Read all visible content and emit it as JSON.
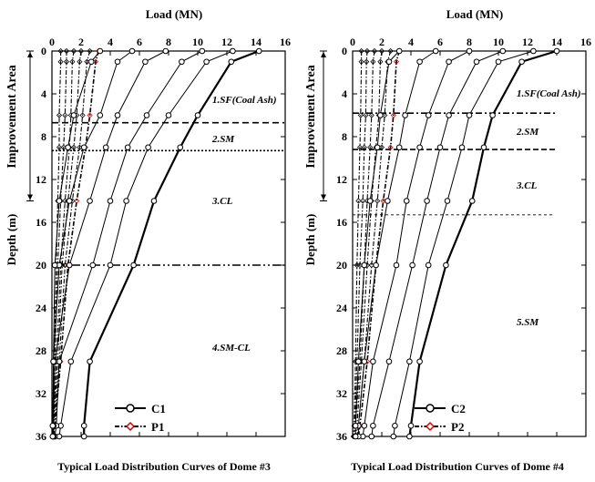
{
  "chart_data": [
    {
      "type": "line",
      "caption": "Typical Load Distribution Curves of Dome #3",
      "xlabel": "Load (MN)",
      "ylabel": "Depth (m)",
      "side_label": "Improvement Area",
      "xlim": [
        0,
        16
      ],
      "ylim": [
        0,
        36
      ],
      "x_ticks": [
        "0",
        "2",
        "4",
        "6",
        "8",
        "10",
        "12",
        "14",
        "16"
      ],
      "y_ticks": [
        "0",
        "4",
        "8",
        "12",
        "16",
        "20",
        "24",
        "28",
        "32",
        "36"
      ],
      "layers": [
        "1.SF(Coal Ash)",
        "2.SM",
        "3.CL",
        "4.SM-CL"
      ],
      "boundaries": [
        6.7,
        9.3,
        20.0
      ],
      "legend": [
        "C1",
        "P1"
      ],
      "depths": [
        0,
        1,
        6,
        9,
        14,
        20,
        29,
        35,
        36
      ],
      "series": [
        {
          "name": "C1",
          "x": [
            14.2,
            12.3,
            10.0,
            8.8,
            7.0,
            5.6,
            2.6,
            2.2,
            2.2
          ]
        },
        {
          "x": [
            12.4,
            10.6,
            8.0,
            6.6,
            5.1,
            4.0,
            1.3,
            0.6,
            0.5
          ]
        },
        {
          "x": [
            10.3,
            8.9,
            6.5,
            5.2,
            4.0,
            2.8,
            0.5,
            0.3,
            0.2
          ]
        },
        {
          "x": [
            7.8,
            6.4,
            4.5,
            3.7,
            2.6,
            1.2,
            0.2,
            0.1,
            0.1
          ]
        },
        {
          "x": [
            5.5,
            4.5,
            3.3,
            2.2,
            1.2,
            0.5,
            0.1,
            0.1,
            0.1
          ]
        },
        {
          "x": [
            3.3,
            2.7,
            1.5,
            1.1,
            0.5,
            0.2,
            0.1,
            0.05,
            0.05
          ]
        }
      ],
      "p_series": [
        {
          "name": "P1",
          "x": [
            3.2,
            3.0,
            2.6,
            2.3,
            1.7,
            1.1,
            0.6,
            0.2,
            0.1
          ]
        },
        {
          "x": [
            2.6,
            2.4,
            2.1,
            1.9,
            1.4,
            0.9,
            0.5,
            0.15,
            0.1
          ]
        },
        {
          "x": [
            2.0,
            1.9,
            1.7,
            1.5,
            1.1,
            0.7,
            0.4,
            0.1,
            0.05
          ]
        },
        {
          "x": [
            1.5,
            1.4,
            1.3,
            1.2,
            0.9,
            0.6,
            0.3,
            0.1,
            0.05
          ]
        },
        {
          "x": [
            1.0,
            1.0,
            0.9,
            0.8,
            0.6,
            0.4,
            0.2,
            0.05,
            0.05
          ]
        },
        {
          "x": [
            0.6,
            0.6,
            0.5,
            0.5,
            0.4,
            0.3,
            0.15,
            0.05,
            0.05
          ]
        }
      ]
    },
    {
      "type": "line",
      "caption": "Typical Load Distribution Curves of Dome #4",
      "xlabel": "Load (MN)",
      "ylabel": "Depth (m)",
      "side_label": "Improvement Area",
      "xlim": [
        0,
        16
      ],
      "ylim": [
        0,
        36
      ],
      "x_ticks": [
        "0",
        "2",
        "4",
        "6",
        "8",
        "10",
        "12",
        "14",
        "16"
      ],
      "y_ticks": [
        "0",
        "4",
        "8",
        "12",
        "16",
        "20",
        "24",
        "28",
        "32",
        "36"
      ],
      "layers": [
        "1.SF(Coal Ash)",
        "2.SM",
        "3.CL",
        "5.SM"
      ],
      "boundaries": [
        5.8,
        9.2,
        15.3
      ],
      "legend": [
        "C2",
        "P2"
      ],
      "depths": [
        0,
        1,
        6,
        9,
        14,
        20,
        29,
        35,
        36
      ],
      "series": [
        {
          "name": "C2",
          "x": [
            14.0,
            11.6,
            9.6,
            9.0,
            8.2,
            6.4,
            4.6,
            4.0,
            3.9
          ]
        },
        {
          "x": [
            12.4,
            10.0,
            8.0,
            7.5,
            6.5,
            5.2,
            3.9,
            2.9,
            2.8
          ]
        },
        {
          "x": [
            10.3,
            8.5,
            6.6,
            6.0,
            5.1,
            4.1,
            2.5,
            1.4,
            1.3
          ]
        },
        {
          "x": [
            8.0,
            6.6,
            5.2,
            4.6,
            3.7,
            3.0,
            1.4,
            0.8,
            0.7
          ]
        },
        {
          "x": [
            5.7,
            4.6,
            3.6,
            3.2,
            2.4,
            1.6,
            0.8,
            0.4,
            0.4
          ]
        },
        {
          "x": [
            3.2,
            2.5,
            1.9,
            1.7,
            1.2,
            0.8,
            0.4,
            0.2,
            0.2
          ]
        }
      ],
      "p_series": [
        {
          "name": "P2",
          "x": [
            3.2,
            3.0,
            2.8,
            2.6,
            2.1,
            1.6,
            1.0,
            0.5,
            0.4
          ]
        },
        {
          "x": [
            2.6,
            2.4,
            2.2,
            2.0,
            1.7,
            1.3,
            0.8,
            0.4,
            0.3
          ]
        },
        {
          "x": [
            2.0,
            1.9,
            1.8,
            1.6,
            1.3,
            1.0,
            0.6,
            0.3,
            0.2
          ]
        },
        {
          "x": [
            1.5,
            1.4,
            1.3,
            1.2,
            1.0,
            0.8,
            0.5,
            0.2,
            0.15
          ]
        },
        {
          "x": [
            1.0,
            0.95,
            0.9,
            0.8,
            0.7,
            0.5,
            0.3,
            0.15,
            0.1
          ]
        },
        {
          "x": [
            0.6,
            0.6,
            0.55,
            0.5,
            0.4,
            0.3,
            0.2,
            0.1,
            0.05
          ]
        }
      ]
    }
  ]
}
